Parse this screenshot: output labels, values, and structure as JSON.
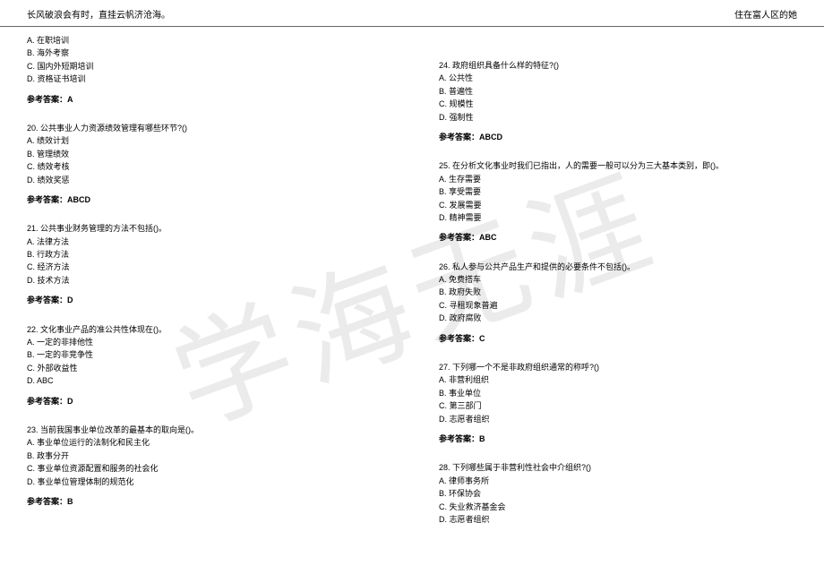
{
  "header": {
    "left": "长风破浪会有时，直挂云帆济沧海。",
    "right": "住在富人区的她"
  },
  "watermark": "学海无涯",
  "leftColumn": [
    {
      "lines": [
        "A. 在职培训",
        "B. 海外考察",
        "C. 国内外短期培训",
        "D. 资格证书培训"
      ],
      "answer": "参考答案：A"
    },
    {
      "lines": [
        "20. 公共事业人力资源绩效管理有哪些环节?()",
        "A. 绩效计划",
        "B. 管理绩效",
        "C. 绩效考核",
        "D. 绩效奖惩"
      ],
      "answer": "参考答案：ABCD"
    },
    {
      "lines": [
        "21. 公共事业财务管理的方法不包括()。",
        "A. 法律方法",
        "B. 行政方法",
        "C. 经济方法",
        "D. 技术方法"
      ],
      "answer": "参考答案：D"
    },
    {
      "lines": [
        "22. 文化事业产品的准公共性体现在()。",
        "A. 一定的非排他性",
        "B. 一定的非竞争性",
        "C. 外部收益性",
        "D. ABC"
      ],
      "answer": "参考答案：D"
    },
    {
      "lines": [
        "23. 当前我国事业单位改革的最基本的取向是()。",
        "A. 事业单位运行的法制化和民主化",
        "B. 政事分开",
        "C. 事业单位资源配置和服务的社会化",
        "D. 事业单位管理体制的规范化"
      ],
      "answer": "参考答案：B"
    }
  ],
  "rightColumn": [
    {
      "lines": [
        "24. 政府组织具备什么样的特征?()",
        "A. 公共性",
        "B. 普遍性",
        "C. 规模性",
        "D. 强制性"
      ],
      "answer": "参考答案：ABCD"
    },
    {
      "lines": [
        "25. 在分析文化事业时我们已指出，人的需要一般可以分为三大基本类别，即()。",
        "A. 生存需要",
        "B. 享受需要",
        "C. 发展需要",
        "D. 精神需要"
      ],
      "answer": "参考答案：ABC"
    },
    {
      "lines": [
        "26. 私人参与公共产品生产和提供的必要条件不包括()。",
        "A. 免费搭车",
        "B. 政府失败",
        "C. 寻租现象普遍",
        "D. 政府腐败"
      ],
      "answer": "参考答案：C"
    },
    {
      "lines": [
        "27. 下列哪一个不是非政府组织通常的称呼?()",
        "A. 非营利组织",
        "B. 事业单位",
        "C. 第三部门",
        "D. 志愿者组织"
      ],
      "answer": "参考答案：B"
    },
    {
      "lines": [
        "28. 下列哪些属于非营利性社会中介组织?()",
        "A. 律师事务所",
        "B. 环保协会",
        "C. 失业救济基金会",
        "D. 志愿者组织"
      ],
      "answer": ""
    }
  ]
}
